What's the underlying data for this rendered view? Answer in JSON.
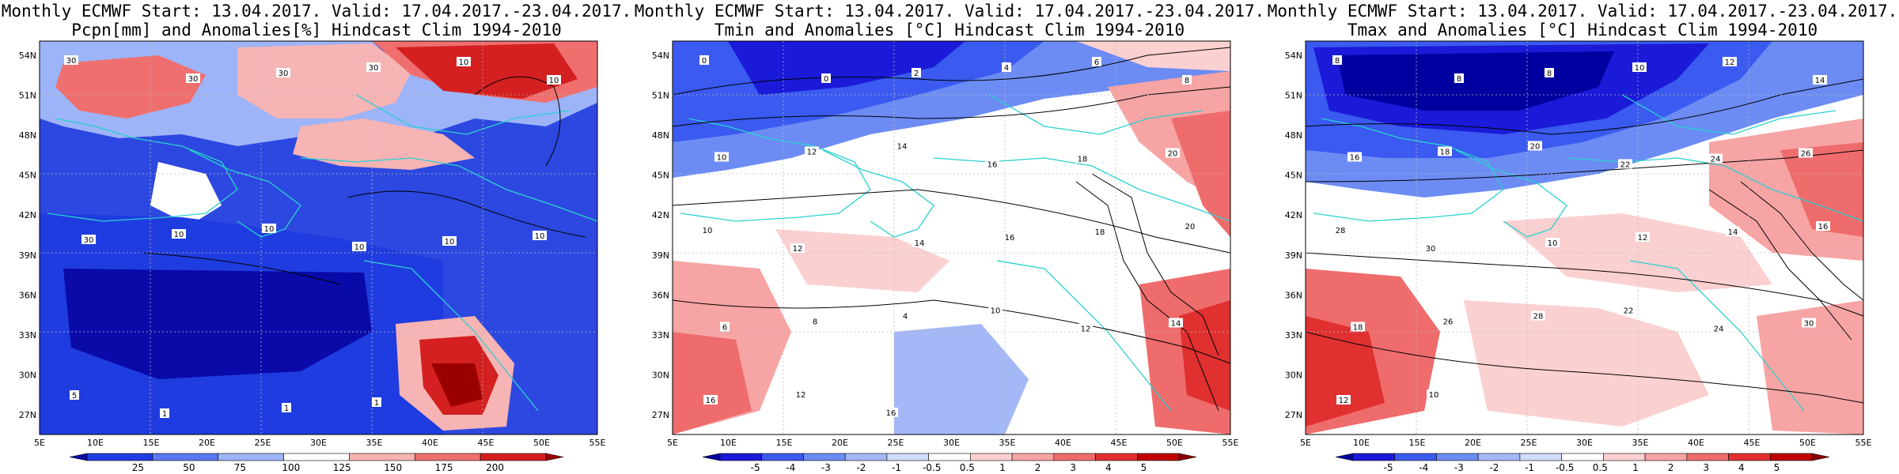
{
  "panels": [
    {
      "title_line1": "Monthly ECMWF Start: 13.04.2017. Valid: 17.04.2017.-23.04.2017.",
      "title_line2": "Pcpn[mm] and Anomalies[%] Hindcast Clim 1994-2010",
      "lat_labels": [
        "54N",
        "51N",
        "48N",
        "45N",
        "42N",
        "39N",
        "36N",
        "33N",
        "30N",
        "27N"
      ],
      "lon_labels": [
        "5E",
        "10E",
        "15E",
        "20E",
        "25E",
        "30E",
        "35E",
        "40E",
        "45E",
        "50E",
        "55E"
      ],
      "colorbar_labels": [
        "25",
        "50",
        "75",
        "100",
        "125",
        "150",
        "175",
        "200"
      ],
      "colorbar_colors": [
        "#0a0aa8",
        "#1f3ce0",
        "#5a78f0",
        "#9db4f8",
        "#ffffff",
        "#f7b4b4",
        "#ef6f6f",
        "#d42020",
        "#9a0000"
      ],
      "background": "#2d48e0",
      "contour_labels": [
        "30",
        "30",
        "30",
        "30",
        "10",
        "10",
        "30",
        "10",
        "10",
        "10",
        "10",
        "10",
        "5",
        "1",
        "1",
        "1"
      ]
    },
    {
      "title_line1": "Monthly ECMWF Start: 13.04.2017. Valid: 17.04.2017.-23.04.2017.",
      "title_line2": "Tmin and Anomalies [°C] Hindcast Clim 1994-2010",
      "lat_labels": [
        "54N",
        "51N",
        "48N",
        "45N",
        "42N",
        "39N",
        "36N",
        "33N",
        "30N",
        "27N"
      ],
      "lon_labels": [
        "5E",
        "10E",
        "15E",
        "20E",
        "25E",
        "30E",
        "35E",
        "40E",
        "45E",
        "50E",
        "55E"
      ],
      "colorbar_labels": [
        "-5",
        "-4",
        "-3",
        "-2",
        "-1",
        "-0.5",
        "0.5",
        "1",
        "2",
        "3",
        "4",
        "5"
      ],
      "colorbar_colors": [
        "#0000a0",
        "#1a1ad8",
        "#3a5af0",
        "#6c8cf4",
        "#a4b8f8",
        "#d0dcfc",
        "#ffffff",
        "#fbd0d0",
        "#f7a4a4",
        "#ef6c6c",
        "#e03030",
        "#c00000",
        "#8a0000"
      ],
      "background": "#ffffff",
      "contour_labels": [
        "0",
        "0",
        "2",
        "4",
        "6",
        "8",
        "10",
        "12",
        "14",
        "16",
        "18",
        "20",
        "10",
        "12",
        "14",
        "16",
        "18",
        "20",
        "6",
        "8",
        "4",
        "10",
        "12",
        "14",
        "16",
        "12",
        "16"
      ]
    },
    {
      "title_line1": "Monthly ECMWF Start: 13.04.2017. Valid: 17.04.2017.-23.04.2017.",
      "title_line2": "Tmax and Anomalies [°C] Hindcast Clim 1994-2010",
      "lat_labels": [
        "54N",
        "51N",
        "48N",
        "45N",
        "42N",
        "39N",
        "36N",
        "33N",
        "30N",
        "27N"
      ],
      "lon_labels": [
        "5E",
        "10E",
        "15E",
        "20E",
        "25E",
        "30E",
        "35E",
        "40E",
        "45E",
        "50E",
        "55E"
      ],
      "colorbar_labels": [
        "-5",
        "-4",
        "-3",
        "-2",
        "-1",
        "-0.5",
        "0.5",
        "1",
        "2",
        "3",
        "4",
        "5"
      ],
      "colorbar_colors": [
        "#0000a0",
        "#1a1ad8",
        "#3a5af0",
        "#6c8cf4",
        "#a4b8f8",
        "#d0dcfc",
        "#ffffff",
        "#fbd0d0",
        "#f7a4a4",
        "#ef6c6c",
        "#e03030",
        "#c00000",
        "#8a0000"
      ],
      "background": "#ffffff",
      "contour_labels": [
        "8",
        "8",
        "8",
        "10",
        "12",
        "14",
        "16",
        "18",
        "20",
        "22",
        "24",
        "26",
        "28",
        "30",
        "10",
        "12",
        "14",
        "16",
        "18",
        "26",
        "28",
        "22",
        "24",
        "30",
        "12",
        "10"
      ]
    }
  ]
}
